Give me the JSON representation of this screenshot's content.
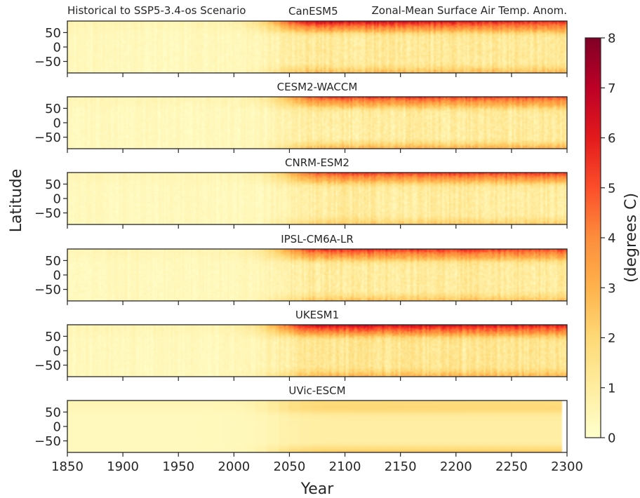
{
  "figure": {
    "left_title": "Historical to SSP5-3.4-os Scenario",
    "right_title": "Zonal-Mean Surface Air Temp. Anom.",
    "xlabel": "Year",
    "ylabel": "Latitude"
  },
  "colorbar": {
    "label": "(degrees C)",
    "min": 0,
    "max": 8,
    "ticks": [
      "0",
      "1",
      "2",
      "3",
      "4",
      "5",
      "6",
      "7",
      "8"
    ],
    "stops": [
      "#ffffcc",
      "#ffeda0",
      "#fed976",
      "#feb24c",
      "#fd8d3c",
      "#fc4e2a",
      "#e31a1c",
      "#bd0026",
      "#800026"
    ]
  },
  "chart_data": {
    "type": "heatmap",
    "x_axis": {
      "label": "Year",
      "range": [
        1850,
        2300
      ],
      "ticks": [
        "1850",
        "1900",
        "1950",
        "2000",
        "2050",
        "2100",
        "2150",
        "2200",
        "2250",
        "2300"
      ]
    },
    "y_axis": {
      "label": "Latitude",
      "range": [
        -90,
        90
      ],
      "ticks": [
        "50",
        "0",
        "−50"
      ]
    },
    "value_units": "degrees C",
    "value_range": [
      0,
      8
    ],
    "grid": false,
    "panels": [
      {
        "name": "CanESM5",
        "arctic_peak": 8.0,
        "arctic_late": 6.8,
        "tropics_peak": 2.1,
        "antarctic_peak": 3.2,
        "onset_year": 2020,
        "peak_year": 2070,
        "end_year": 2300,
        "noise": 0.5
      },
      {
        "name": "CESM2-WACCM",
        "arctic_peak": 6.6,
        "arctic_late": 5.8,
        "tropics_peak": 1.8,
        "antarctic_peak": 3.4,
        "onset_year": 2030,
        "peak_year": 2070,
        "end_year": 2300,
        "noise": 0.5
      },
      {
        "name": "CNRM-ESM2",
        "arctic_peak": 6.4,
        "arctic_late": 6.6,
        "tropics_peak": 1.8,
        "antarctic_peak": 2.7,
        "onset_year": 2030,
        "peak_year": 2080,
        "end_year": 2300,
        "noise": 0.45
      },
      {
        "name": "IPSL-CM6A-LR",
        "arctic_peak": 7.0,
        "arctic_late": 6.3,
        "tropics_peak": 2.0,
        "antarctic_peak": 3.0,
        "onset_year": 2025,
        "peak_year": 2070,
        "end_year": 2300,
        "noise": 0.5
      },
      {
        "name": "UKESM1",
        "arctic_peak": 8.0,
        "arctic_late": 7.2,
        "tropics_peak": 2.3,
        "antarctic_peak": 3.3,
        "onset_year": 2020,
        "peak_year": 2070,
        "end_year": 2300,
        "noise": 0.5
      },
      {
        "name": "UVic-ESCM",
        "arctic_peak": 2.8,
        "arctic_late": 2.6,
        "tropics_peak": 1.7,
        "antarctic_peak": 2.8,
        "onset_year": 2020,
        "peak_year": 2080,
        "end_year": 2296,
        "noise": 0.0
      }
    ]
  }
}
